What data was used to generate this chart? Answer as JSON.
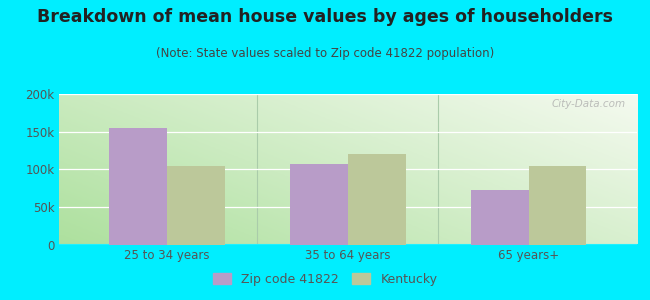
{
  "title": "Breakdown of mean house values by ages of householders",
  "subtitle": "(Note: State values scaled to Zip code 41822 population)",
  "categories": [
    "25 to 34 years",
    "35 to 64 years",
    "65 years+"
  ],
  "zip_values": [
    155000,
    107000,
    73000
  ],
  "state_values": [
    105000,
    120000,
    105000
  ],
  "zip_color": "#b89cc8",
  "state_color": "#bcc89a",
  "background_outer": "#00eeff",
  "ylim": [
    0,
    200000
  ],
  "yticks": [
    0,
    50000,
    100000,
    150000,
    200000
  ],
  "ytick_labels": [
    "0",
    "50k",
    "100k",
    "150k",
    "200k"
  ],
  "legend_zip_label": "Zip code 41822",
  "legend_state_label": "Kentucky",
  "title_fontsize": 12.5,
  "subtitle_fontsize": 8.5,
  "tick_fontsize": 8.5,
  "bar_width": 0.32,
  "title_color": "#222222",
  "subtitle_color": "#444444",
  "tick_color": "#555555"
}
